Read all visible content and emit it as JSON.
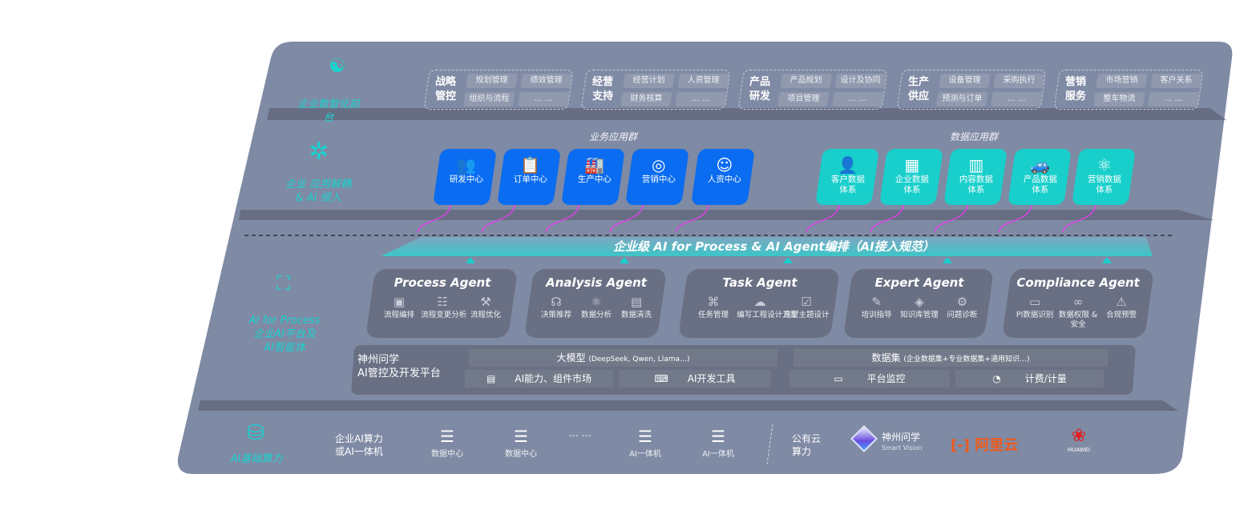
{
  "colors": {
    "panel": "#7f8aa4",
    "accent_cyan": "#19d3d0",
    "business_blue": "#0a6cf0",
    "data_teal": "#19cfcb",
    "agent_card": "#6a7083",
    "connector_magenta": "#e040e8"
  },
  "front_layer": {
    "label": "企业数智化前台",
    "icon": "brain-icon",
    "groups": [
      {
        "title": "战略\n管控",
        "items": [
          "规划管理",
          "绩效管理",
          "组织与流程",
          "… …"
        ]
      },
      {
        "title": "经营\n支持",
        "items": [
          "经营计划",
          "人资管理",
          "财务核算",
          "… …"
        ]
      },
      {
        "title": "产品\n研发",
        "items": [
          "产品规划",
          "设计及协同",
          "项目管理",
          "… …"
        ]
      },
      {
        "title": "生产\n供应",
        "items": [
          "设备管理",
          "采购执行",
          "预测与订单",
          "… …"
        ]
      },
      {
        "title": "营销\n服务",
        "items": [
          "市场营销",
          "客户关系",
          "整车物流",
          "… …"
        ]
      }
    ]
  },
  "app_layer": {
    "label": "企业 应用解耦\n& AI 侵入",
    "icon": "molecule-icon",
    "business_group": {
      "title": "业务应用群",
      "items": [
        {
          "label": "研发中心",
          "icon": "team-icon"
        },
        {
          "label": "订单中心",
          "icon": "clipboard-icon"
        },
        {
          "label": "生产中心",
          "icon": "factory-icon"
        },
        {
          "label": "营销中心",
          "icon": "target-icon"
        },
        {
          "label": "人资中心",
          "icon": "person-icon"
        }
      ]
    },
    "data_group": {
      "title": "数据应用群",
      "items": [
        {
          "label": "客户数据\n体系",
          "icon": "user-icon"
        },
        {
          "label": "企业数据\n体系",
          "icon": "building-icon"
        },
        {
          "label": "内容数据\n体系",
          "icon": "books-icon"
        },
        {
          "label": "产品数据\n体系",
          "icon": "car-icon"
        },
        {
          "label": "营销数据\n体系",
          "icon": "atom-icon"
        }
      ]
    }
  },
  "ai_layer": {
    "label": "AI for Process\n企业AI平台及\nAI智能体",
    "icon": "face-scan-icon",
    "banner": "企业级 AI for Process & AI Agent编排（AI接入规范）",
    "agents": [
      {
        "name": "Process Agent",
        "items": [
          {
            "label": "流程编排",
            "icon": "chart-icon"
          },
          {
            "label": "流程变更分析",
            "icon": "list-icon"
          },
          {
            "label": "流程优化",
            "icon": "tools-icon"
          }
        ]
      },
      {
        "name": "Analysis Agent",
        "items": [
          {
            "label": "决策推荐",
            "icon": "head-icon"
          },
          {
            "label": "数据分析",
            "icon": "atom-icon"
          },
          {
            "label": "数据清洗",
            "icon": "document-icon"
          }
        ]
      },
      {
        "name": "Task Agent",
        "items": [
          {
            "label": "任务管理",
            "icon": "network-icon"
          },
          {
            "label": "编写工程设计方案",
            "icon": "cloud-icon"
          },
          {
            "label": "造型主题设计",
            "icon": "checklist-icon"
          }
        ]
      },
      {
        "name": "Expert Agent",
        "items": [
          {
            "label": "培训指导",
            "icon": "pen-icon"
          },
          {
            "label": "知识库管理",
            "icon": "layers-icon"
          },
          {
            "label": "问题诊断",
            "icon": "diagnose-icon"
          }
        ]
      },
      {
        "name": "Compliance Agent",
        "items": [
          {
            "label": "PI数据识别",
            "icon": "id-card-icon"
          },
          {
            "label": "数据权限 &\n安全",
            "icon": "link-icon"
          },
          {
            "label": "合规预警",
            "icon": "alert-icon"
          }
        ]
      }
    ],
    "platform": {
      "title": "神州问学\nAI管控及开发平台",
      "model": "大模型",
      "model_note": "(DeepSeek, Qwen, Llama…)",
      "dataset": "数据集",
      "dataset_note": "(企业数据集+专业数据集+通用知识…)",
      "tools": [
        {
          "label": "AI能力、组件市场",
          "icon": "market-icon"
        },
        {
          "label": "AI开发工具",
          "icon": "dev-tool-icon"
        },
        {
          "label": "平台监控",
          "icon": "monitor-icon"
        },
        {
          "label": "计费/计量",
          "icon": "gauge-icon"
        }
      ]
    }
  },
  "infra_layer": {
    "label": "AI基础算力",
    "icon": "database-icon",
    "private_title": "企业AI算力\n或AI一体机",
    "nodes": [
      {
        "label": "数据中心"
      },
      {
        "label": "数据中心"
      },
      {
        "label": "AI一体机"
      },
      {
        "label": "AI一体机"
      }
    ],
    "ellipsis": "… …",
    "public_title": "公有云\n算力",
    "vendors": [
      {
        "name": "神州问学",
        "sub": "Smart Vision"
      },
      {
        "name": "阿里云"
      },
      {
        "name": "HUAWEI"
      }
    ]
  }
}
